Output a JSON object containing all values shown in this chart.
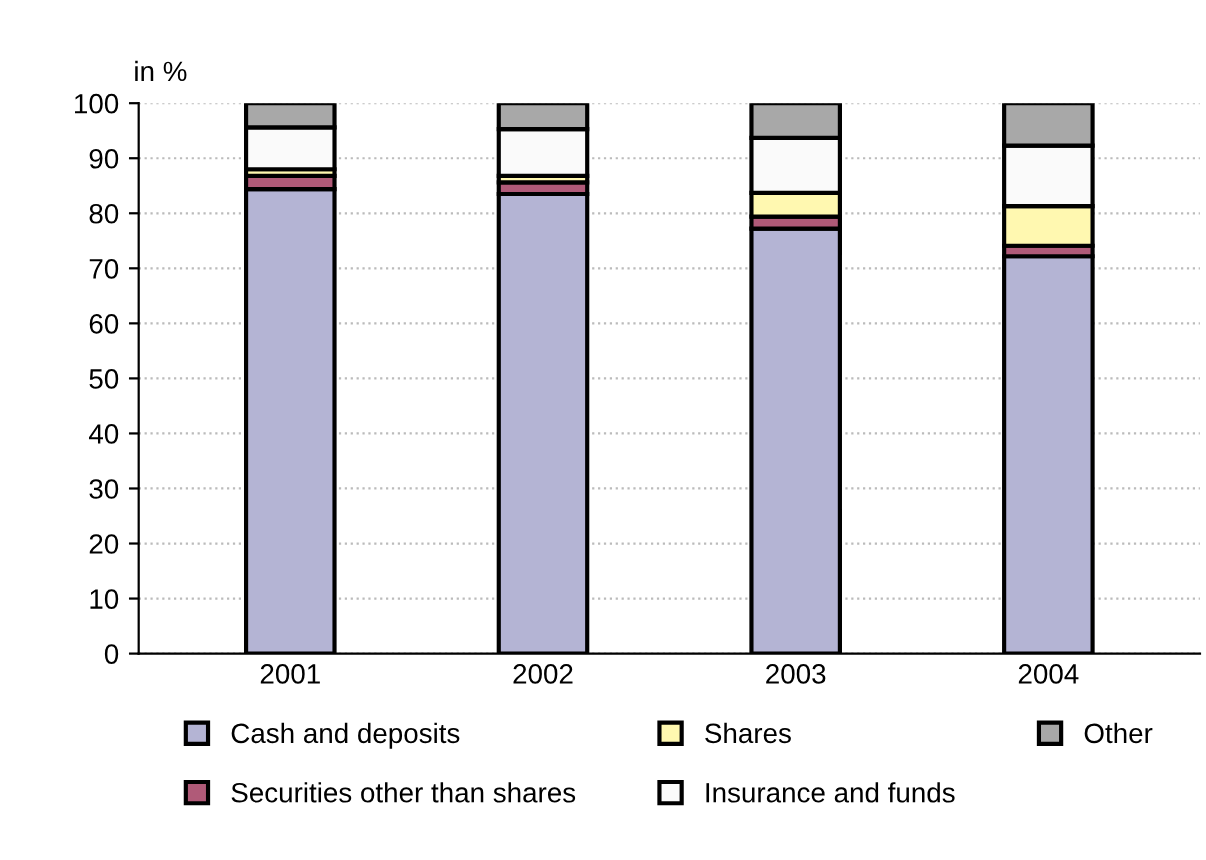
{
  "chart_data": {
    "type": "bar",
    "stacked": true,
    "ylabel": "in %",
    "categories": [
      "2001",
      "2002",
      "2003",
      "2004"
    ],
    "series": [
      {
        "name": "Cash and deposits",
        "color": "#b4b4d4",
        "values": [
          84.4,
          83.5,
          77.2,
          72.2
        ]
      },
      {
        "name": "Securities other than shares",
        "color": "#b05a78",
        "values": [
          2.4,
          2.1,
          2.2,
          1.9
        ]
      },
      {
        "name": "Shares",
        "color": "#fff8b0",
        "values": [
          1.2,
          1.2,
          4.3,
          7.2
        ]
      },
      {
        "name": "Insurance and funds",
        "color": "#fafafa",
        "values": [
          7.6,
          8.5,
          10.0,
          11.0
        ]
      },
      {
        "name": "Other",
        "color": "#a8a8a8",
        "values": [
          4.4,
          4.7,
          6.3,
          7.7
        ]
      }
    ],
    "ylim": [
      0,
      100
    ],
    "yticks": [
      0,
      10,
      20,
      30,
      40,
      50,
      60,
      70,
      80,
      90,
      100
    ],
    "grid": "y",
    "legend": "bottom"
  }
}
